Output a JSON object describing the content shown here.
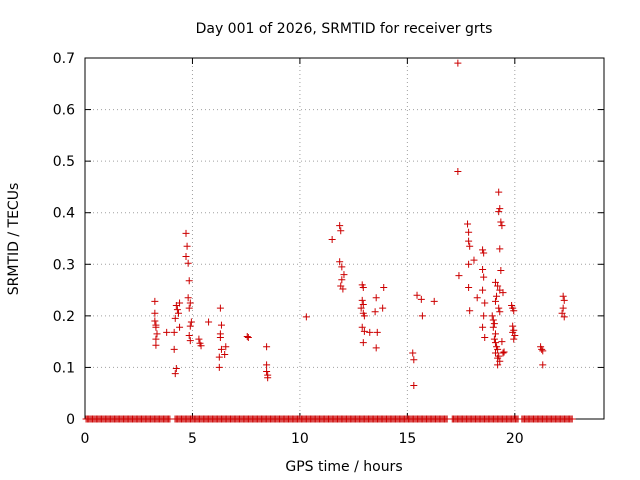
{
  "chart_data": {
    "type": "scatter",
    "title": "Day 001 of 2026, SRMTID for receiver grts",
    "xlabel": "GPS time / hours",
    "ylabel": "SRMTID / TECUs",
    "xlim": [
      0,
      24.15
    ],
    "ylim": [
      0,
      0.7
    ],
    "xticks": [
      0,
      5,
      10,
      15,
      20
    ],
    "xtick_labels": [
      "0",
      "5",
      "10",
      "15",
      "20"
    ],
    "yticks": [
      0,
      0.1,
      0.2,
      0.3,
      0.4,
      0.5,
      0.6,
      0.7
    ],
    "ytick_labels": [
      "0",
      "0.1",
      "0.2",
      "0.3",
      "0.4",
      "0.5",
      "0.6",
      "0.7"
    ],
    "grid": true,
    "marker": "+",
    "series": [
      {
        "name": "SRMTID",
        "color": "#cc0000",
        "baseline": {
          "y": 0,
          "x_from": 0.05,
          "x_to": 22.7,
          "step": 0.06,
          "gaps": [
            [
              4.0,
              4.15
            ],
            [
              16.9,
              17.05
            ],
            [
              20.15,
              20.3
            ]
          ]
        },
        "points": [
          [
            3.25,
            0.228
          ],
          [
            3.25,
            0.205
          ],
          [
            3.25,
            0.19
          ],
          [
            3.3,
            0.182
          ],
          [
            3.3,
            0.178
          ],
          [
            3.35,
            0.165
          ],
          [
            3.3,
            0.155
          ],
          [
            3.3,
            0.143
          ],
          [
            3.8,
            0.168
          ],
          [
            4.15,
            0.168
          ],
          [
            4.2,
            0.088
          ],
          [
            4.25,
            0.098
          ],
          [
            4.15,
            0.135
          ],
          [
            4.25,
            0.22
          ],
          [
            4.3,
            0.212
          ],
          [
            4.4,
            0.225
          ],
          [
            4.35,
            0.205
          ],
          [
            4.2,
            0.195
          ],
          [
            4.4,
            0.178
          ],
          [
            4.7,
            0.36
          ],
          [
            4.75,
            0.335
          ],
          [
            4.7,
            0.315
          ],
          [
            4.8,
            0.302
          ],
          [
            4.85,
            0.268
          ],
          [
            4.8,
            0.235
          ],
          [
            4.9,
            0.225
          ],
          [
            4.85,
            0.215
          ],
          [
            4.95,
            0.188
          ],
          [
            4.9,
            0.18
          ],
          [
            4.85,
            0.162
          ],
          [
            4.9,
            0.152
          ],
          [
            5.3,
            0.155
          ],
          [
            5.35,
            0.147
          ],
          [
            5.4,
            0.142
          ],
          [
            5.75,
            0.188
          ],
          [
            6.3,
            0.215
          ],
          [
            6.35,
            0.182
          ],
          [
            6.3,
            0.165
          ],
          [
            6.3,
            0.158
          ],
          [
            6.35,
            0.135
          ],
          [
            6.25,
            0.12
          ],
          [
            6.25,
            0.1
          ],
          [
            6.55,
            0.14
          ],
          [
            6.5,
            0.125
          ],
          [
            7.55,
            0.16
          ],
          [
            7.6,
            0.158
          ],
          [
            8.45,
            0.14
          ],
          [
            8.45,
            0.105
          ],
          [
            8.45,
            0.092
          ],
          [
            8.5,
            0.085
          ],
          [
            8.5,
            0.08
          ],
          [
            10.3,
            0.198
          ],
          [
            11.5,
            0.348
          ],
          [
            11.85,
            0.375
          ],
          [
            11.9,
            0.365
          ],
          [
            11.85,
            0.305
          ],
          [
            11.95,
            0.295
          ],
          [
            12.05,
            0.28
          ],
          [
            11.95,
            0.27
          ],
          [
            11.9,
            0.258
          ],
          [
            12.0,
            0.252
          ],
          [
            12.9,
            0.26
          ],
          [
            12.95,
            0.255
          ],
          [
            12.9,
            0.23
          ],
          [
            12.95,
            0.222
          ],
          [
            12.85,
            0.215
          ],
          [
            12.95,
            0.205
          ],
          [
            13.0,
            0.2
          ],
          [
            12.9,
            0.178
          ],
          [
            13.0,
            0.17
          ],
          [
            12.95,
            0.148
          ],
          [
            13.25,
            0.168
          ],
          [
            13.55,
            0.235
          ],
          [
            13.5,
            0.208
          ],
          [
            13.6,
            0.168
          ],
          [
            13.55,
            0.138
          ],
          [
            13.9,
            0.255
          ],
          [
            13.85,
            0.215
          ],
          [
            15.25,
            0.128
          ],
          [
            15.3,
            0.115
          ],
          [
            15.3,
            0.065
          ],
          [
            15.45,
            0.24
          ],
          [
            15.65,
            0.232
          ],
          [
            15.7,
            0.2
          ],
          [
            16.25,
            0.228
          ],
          [
            17.35,
            0.69
          ],
          [
            17.35,
            0.48
          ],
          [
            17.4,
            0.278
          ],
          [
            17.8,
            0.378
          ],
          [
            17.85,
            0.362
          ],
          [
            17.85,
            0.345
          ],
          [
            17.9,
            0.335
          ],
          [
            17.85,
            0.3
          ],
          [
            17.85,
            0.255
          ],
          [
            17.9,
            0.21
          ],
          [
            18.1,
            0.308
          ],
          [
            18.25,
            0.235
          ],
          [
            18.5,
            0.328
          ],
          [
            18.55,
            0.322
          ],
          [
            18.5,
            0.29
          ],
          [
            18.55,
            0.275
          ],
          [
            18.5,
            0.25
          ],
          [
            18.6,
            0.225
          ],
          [
            18.55,
            0.2
          ],
          [
            18.5,
            0.178
          ],
          [
            18.6,
            0.158
          ],
          [
            18.95,
            0.2
          ],
          [
            19.0,
            0.192
          ],
          [
            19.05,
            0.185
          ],
          [
            19.0,
            0.178
          ],
          [
            19.1,
            0.165
          ],
          [
            19.05,
            0.155
          ],
          [
            19.1,
            0.148
          ],
          [
            19.15,
            0.14
          ],
          [
            19.2,
            0.135
          ],
          [
            19.1,
            0.128
          ],
          [
            19.25,
            0.122
          ],
          [
            19.2,
            0.118
          ],
          [
            19.3,
            0.112
          ],
          [
            19.2,
            0.105
          ],
          [
            19.25,
            0.44
          ],
          [
            19.3,
            0.408
          ],
          [
            19.25,
            0.402
          ],
          [
            19.35,
            0.382
          ],
          [
            19.4,
            0.375
          ],
          [
            19.3,
            0.33
          ],
          [
            19.35,
            0.288
          ],
          [
            19.1,
            0.265
          ],
          [
            19.2,
            0.258
          ],
          [
            19.3,
            0.25
          ],
          [
            19.45,
            0.245
          ],
          [
            19.15,
            0.238
          ],
          [
            19.1,
            0.228
          ],
          [
            19.25,
            0.215
          ],
          [
            19.3,
            0.208
          ],
          [
            19.4,
            0.15
          ],
          [
            19.45,
            0.128
          ],
          [
            19.5,
            0.13
          ],
          [
            19.85,
            0.22
          ],
          [
            19.9,
            0.215
          ],
          [
            19.95,
            0.21
          ],
          [
            19.9,
            0.18
          ],
          [
            19.95,
            0.172
          ],
          [
            19.9,
            0.168
          ],
          [
            20.0,
            0.162
          ],
          [
            19.95,
            0.155
          ],
          [
            21.2,
            0.14
          ],
          [
            21.25,
            0.135
          ],
          [
            21.3,
            0.132
          ],
          [
            21.3,
            0.105
          ],
          [
            22.25,
            0.238
          ],
          [
            22.3,
            0.23
          ],
          [
            22.25,
            0.215
          ],
          [
            22.2,
            0.205
          ],
          [
            22.3,
            0.198
          ]
        ]
      }
    ]
  }
}
